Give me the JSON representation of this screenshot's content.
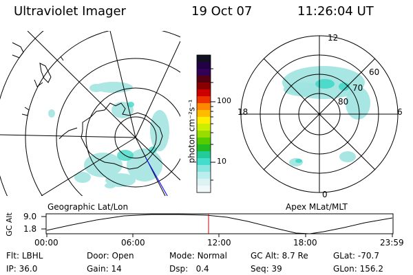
{
  "header": {
    "title": "Ultraviolet Imager",
    "date": "19 Oct 07",
    "time": "11:26:04 UT"
  },
  "colorbar": {
    "unit_label": "photon cm⁻²s⁻¹",
    "ticks": [
      "100",
      "10"
    ],
    "colors": [
      "#111122",
      "#220044",
      "#330055",
      "#550011",
      "#880000",
      "#cc0000",
      "#ee3300",
      "#ff8800",
      "#ffbb00",
      "#ffee00",
      "#ccee00",
      "#99dd00",
      "#55cc00",
      "#22bb22",
      "#22cc99",
      "#44ddcc",
      "#88e6e0",
      "#bbeeee",
      "#ddf2f2",
      "#f0f8f8"
    ]
  },
  "left_map": {
    "label": "Geographic Lat/Lon"
  },
  "right_map": {
    "label": "Apex MLat/MLT",
    "mlt_labels": {
      "top": "12",
      "bottom": "0",
      "left": "18",
      "right": "6"
    },
    "lat_labels": [
      "60",
      "70",
      "80"
    ]
  },
  "altitude_plot": {
    "y_label": "GC Alt",
    "y_ticks": [
      "9.0",
      "1.8"
    ],
    "x_ticks": [
      "00:00",
      "06:00",
      "12:00",
      "18:00",
      "23:59"
    ],
    "marker_time": "11:26"
  },
  "status": {
    "row1": [
      {
        "label": "Flt:",
        "value": "LBHL"
      },
      {
        "label": "Door:",
        "value": "Open"
      },
      {
        "label": "Mode:",
        "value": "Normal"
      },
      {
        "label": "GC Alt:",
        "value": "8.7 Re"
      },
      {
        "label": "GLat:",
        "value": "-70.7"
      }
    ],
    "row2": [
      {
        "label": "IP:",
        "value": "36.0"
      },
      {
        "label": "Gain:",
        "value": "14"
      },
      {
        "label": "Dsp:",
        "value": "0.4"
      },
      {
        "label": "Seq:",
        "value": "39"
      },
      {
        "label": "GLon:",
        "value": "156.2"
      }
    ]
  }
}
